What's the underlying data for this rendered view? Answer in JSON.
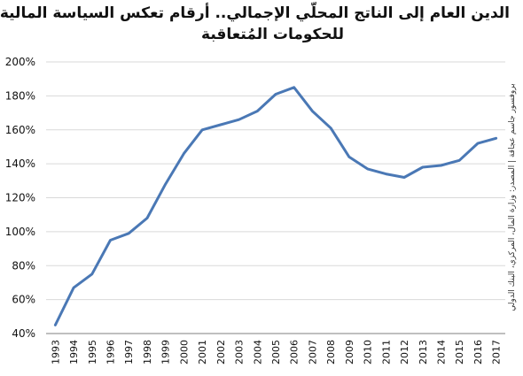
{
  "title": {
    "line1": "الدين العام إلى الناتج المحلّي الإجمالي.. أرقام تعكس السياسة المالية",
    "line2": "للحكومات المُتعاقبة"
  },
  "source_note": "بروفسور جاسم عجاقة | المصدر: وزارة المال، المركزي، البنك الدولي",
  "colors": {
    "line": "#4a78b5",
    "grid": "#d9d9d9",
    "axis": "#7f7f7f",
    "text": "#111111"
  },
  "chart_data": {
    "type": "line",
    "title": "الدين العام إلى الناتج المحلّي الإجمالي.. أرقام تعكس السياسة المالية للحكومات المُتعاقبة",
    "xlabel": "",
    "ylabel": "",
    "categories": [
      "1993",
      "1994",
      "1995",
      "1996",
      "1997",
      "1998",
      "1999",
      "2000",
      "2001",
      "2002",
      "2003",
      "2004",
      "2005",
      "2006",
      "2007",
      "2008",
      "2009",
      "2010",
      "2011",
      "2012",
      "2013",
      "2014",
      "2015",
      "2016",
      "2017"
    ],
    "series": [
      {
        "values": [
          45,
          67,
          75,
          95,
          99,
          108,
          128,
          146,
          160,
          163,
          166,
          171,
          181,
          185,
          171,
          161,
          144,
          137,
          134,
          132,
          138,
          139,
          142,
          152,
          155
        ]
      }
    ],
    "y_ticks": [
      "40%",
      "60%",
      "80%",
      "100%",
      "120%",
      "140%",
      "160%",
      "180%",
      "200%"
    ],
    "ylim": [
      40,
      200
    ],
    "grid": true,
    "legend": "none"
  }
}
